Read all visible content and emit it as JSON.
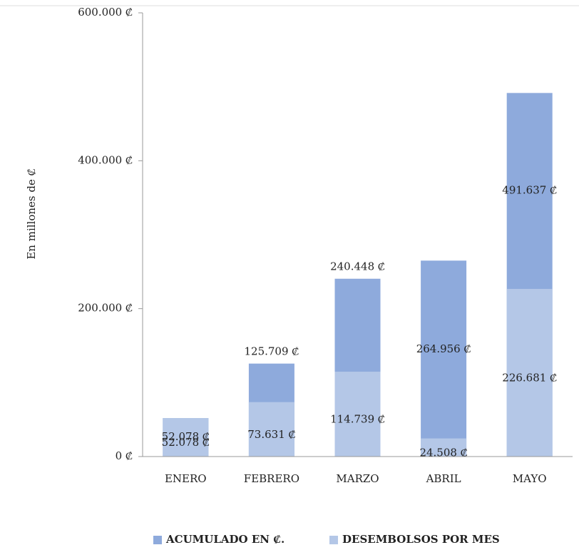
{
  "chart_data": {
    "type": "bar",
    "y_label": "En millones de ₡",
    "categories": [
      "ENERO",
      "FEBRERO",
      "MARZO",
      "ABRIL",
      "MAYO"
    ],
    "series": [
      {
        "name": "ACUMULADO EN ₡.",
        "color": "#8eaadc",
        "values": [
          52078,
          125709,
          240448,
          264956,
          491637
        ],
        "value_labels": [
          "52.078 ₡",
          "125.709 ₡",
          "240.448 ₡",
          "264.956 ₡",
          "491.637 ₡"
        ]
      },
      {
        "name": "DESEMBOLSOS POR MES",
        "color": "#b4c7e7",
        "values": [
          52078,
          73631,
          114739,
          24508,
          226681
        ],
        "value_labels": [
          "52.078 ₡",
          "73.631 ₡",
          "114.739 ₡",
          "24.508 ₡",
          "226.681 ₡"
        ]
      }
    ],
    "ylim": [
      0,
      600000
    ],
    "yticks": [
      {
        "value": 0,
        "label": "0 ₡"
      },
      {
        "value": 200000,
        "label": "200.000 ₡"
      },
      {
        "value": 400000,
        "label": "400.000 ₡"
      },
      {
        "value": 600000,
        "label": "600.000 ₡"
      }
    ],
    "legend": "bottom",
    "overlap": true
  }
}
